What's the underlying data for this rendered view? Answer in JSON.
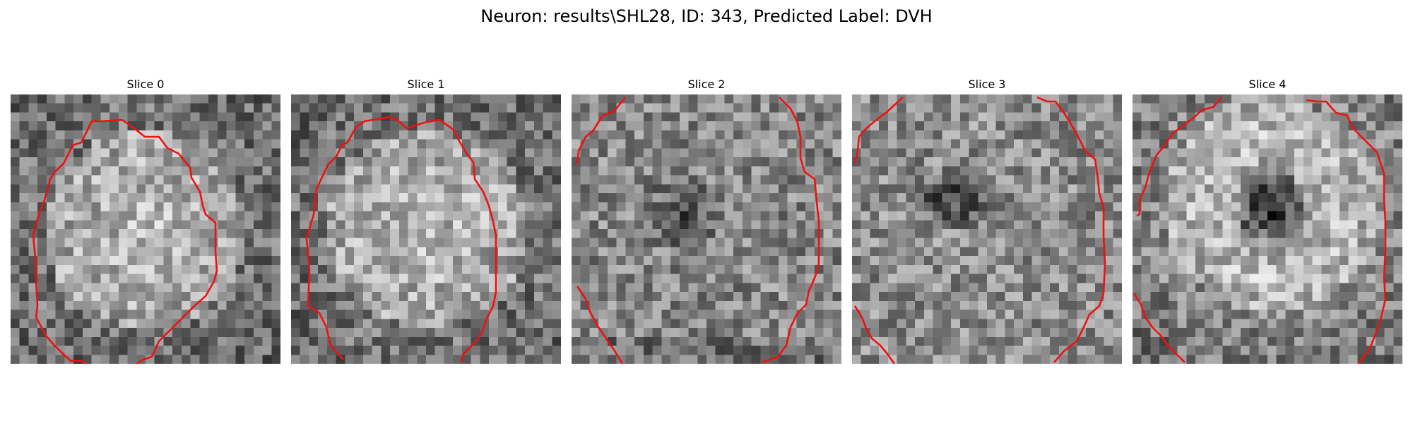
{
  "figure": {
    "suptitle": "Neuron: results\\SHL28, ID: 343, Predicted Label: DVH",
    "contour_color": "#ee1111",
    "panels": [
      {
        "title": "Slice 0",
        "pattern": "bright-disk"
      },
      {
        "title": "Slice 1",
        "pattern": "bright-disk"
      },
      {
        "title": "Slice 2",
        "pattern": "noisy-dark-center"
      },
      {
        "title": "Slice 3",
        "pattern": "dark-blob-upper"
      },
      {
        "title": "Slice 4",
        "pattern": "dark-center-ring"
      }
    ]
  }
}
